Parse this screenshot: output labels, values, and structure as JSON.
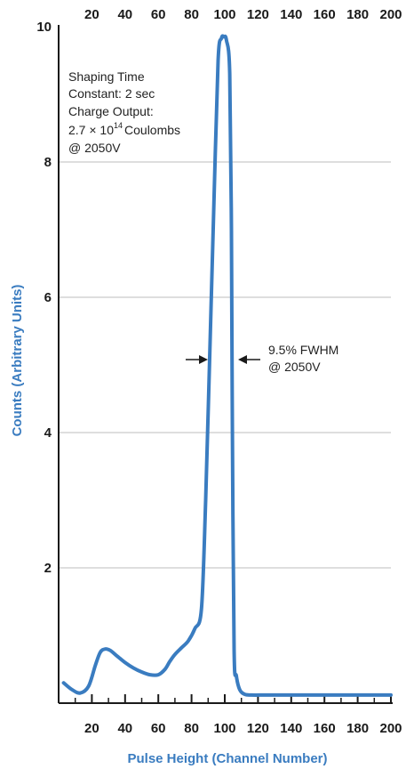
{
  "chart_data": {
    "type": "line",
    "xlabel": "Pulse Height (Channel Number)",
    "ylabel": "Counts (Arbitrary Units)",
    "xlim": [
      0,
      200
    ],
    "ylim": [
      0,
      10
    ],
    "x_ticks": [
      20,
      40,
      60,
      80,
      100,
      120,
      140,
      160,
      180,
      200
    ],
    "y_ticks": [
      2,
      4,
      6,
      8,
      10
    ],
    "grid": "horizontal",
    "colors": {
      "line": "#3a7cc0",
      "grid": "#bdbdbd",
      "axis": "#1a1a1a",
      "axis_title": "#3a7cc0"
    },
    "series": [
      {
        "x": [
          3,
          8,
          13,
          18,
          22,
          25,
          28,
          31,
          35,
          40,
          45,
          50,
          55,
          60,
          64,
          67,
          70,
          74,
          78,
          82,
          86,
          88.5,
          91,
          93.5,
          96,
          98,
          99.5,
          101,
          103,
          104,
          104.6,
          105.6,
          107,
          109,
          112,
          116,
          125,
          140,
          160,
          180,
          200
        ],
        "y": [
          0.3,
          0.2,
          0.15,
          0.25,
          0.55,
          0.75,
          0.8,
          0.78,
          0.7,
          0.6,
          0.52,
          0.46,
          0.42,
          0.42,
          0.5,
          0.62,
          0.72,
          0.82,
          0.92,
          1.1,
          1.4,
          3.0,
          5.2,
          7.4,
          9.5,
          9.83,
          9.85,
          9.8,
          9.3,
          7.0,
          4.0,
          0.8,
          0.4,
          0.2,
          0.13,
          0.12,
          0.12,
          0.12,
          0.12,
          0.12,
          0.12
        ]
      }
    ],
    "annotations": {
      "shaping_line1": "Shaping Time",
      "shaping_line2": "Constant: 2   sec",
      "charge_line1": "Charge Output:",
      "charge_base": "2.7 × 10",
      "charge_exp": "14",
      "charge_unit": "Coulombs",
      "charge_line3": "@ 2050V",
      "fwhm_line1": "9.5% FWHM",
      "fwhm_line2": "@ 2050V"
    }
  }
}
